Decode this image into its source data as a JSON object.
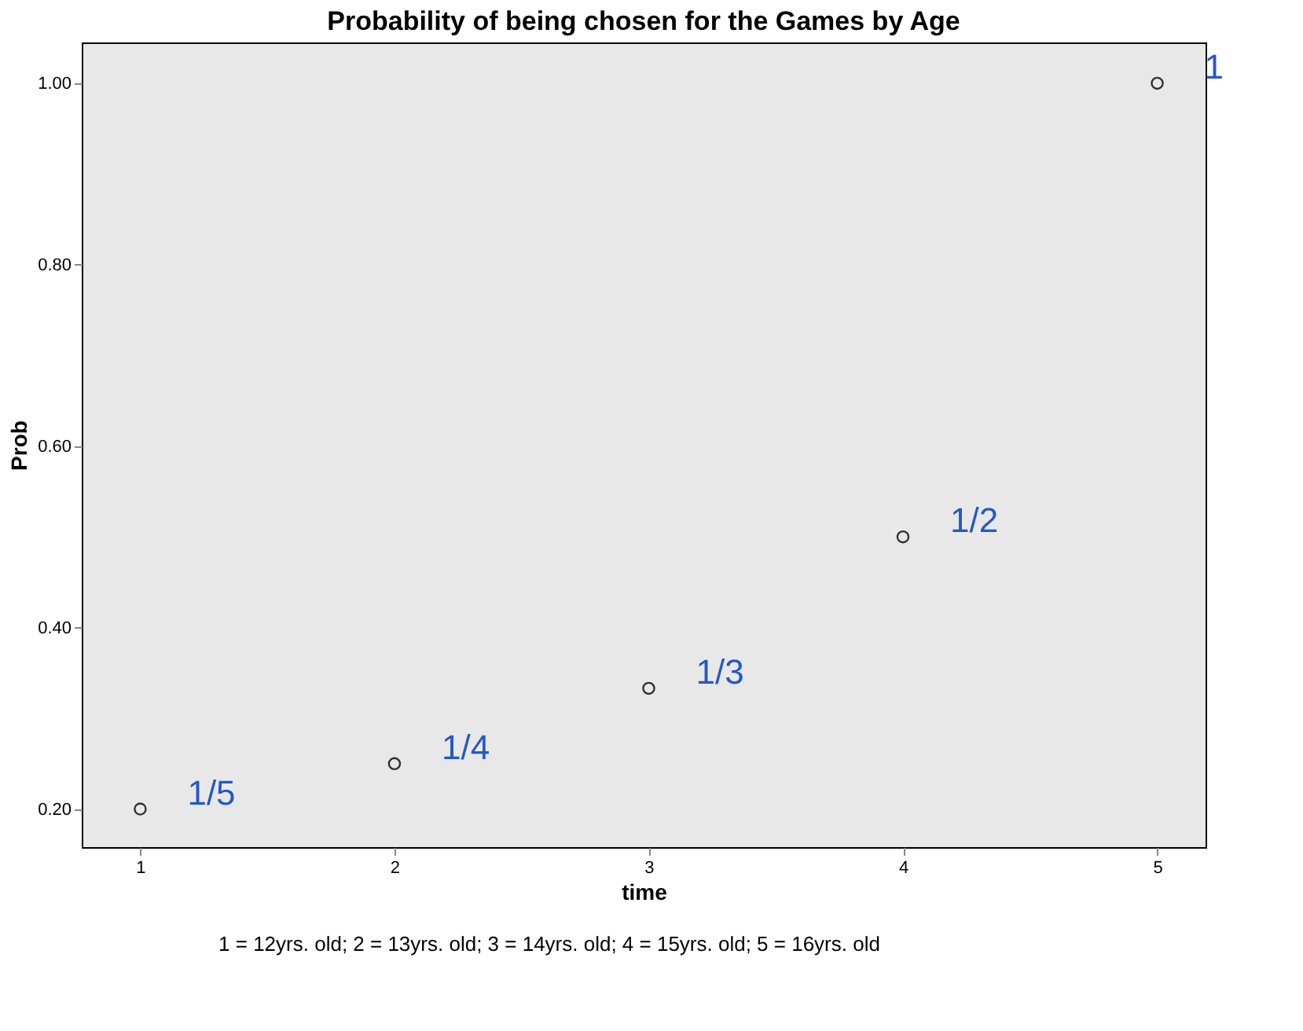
{
  "chart_data": {
    "type": "scatter",
    "title": "Probability of being chosen for the Games by Age",
    "xlabel": "time",
    "ylabel": "Prob",
    "x": [
      1,
      2,
      3,
      4,
      5
    ],
    "series": [
      {
        "color": "#333333",
        "values": [
          0.2,
          0.25,
          0.333,
          0.5,
          1.0
        ]
      }
    ],
    "marker": "circle",
    "grid": false,
    "legend": false,
    "xlim": [
      0.77,
      5.19
    ],
    "xticks": [
      1,
      2,
      3,
      4,
      5
    ],
    "ylim": [
      0.158,
      1.045
    ],
    "yticks": [
      {
        "value": 0.2,
        "label": "0.20"
      },
      {
        "value": 0.4,
        "label": "0.40"
      },
      {
        "value": 0.6,
        "label": "0.60"
      },
      {
        "value": 0.8,
        "label": "0.80"
      },
      {
        "value": 1.0,
        "label": "1.00"
      }
    ],
    "annotations": [
      {
        "text": "1/5",
        "x": 1,
        "y": 0.2
      },
      {
        "text": "1/4",
        "x": 2,
        "y": 0.25
      },
      {
        "text": "1/3",
        "x": 3,
        "y": 0.333
      },
      {
        "text": "1/2",
        "x": 4,
        "y": 0.5
      },
      {
        "text": "1",
        "x": 5,
        "y": 1.0
      },
      "1 = 12yrs. old; 2 = 13yrs. old; 3 = 14yrs. old; 4 = 15yrs. old; 5 = 16yrs. old"
    ]
  }
}
